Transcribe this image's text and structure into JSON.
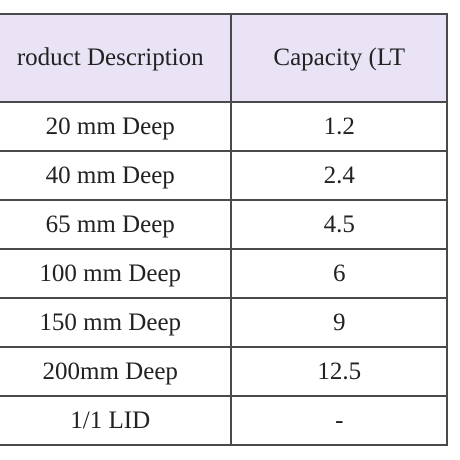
{
  "table": {
    "headers": [
      "roduct Description",
      "Capacity (LT"
    ],
    "rows": [
      {
        "description": "20 mm Deep",
        "capacity": "1.2"
      },
      {
        "description": "40 mm Deep",
        "capacity": "2.4"
      },
      {
        "description": "65 mm Deep",
        "capacity": "4.5"
      },
      {
        "description": "100 mm Deep",
        "capacity": "6"
      },
      {
        "description": "150 mm Deep",
        "capacity": "9"
      },
      {
        "description": "200mm Deep",
        "capacity": "12.5"
      },
      {
        "description": "1/1 LID",
        "capacity": "-"
      }
    ]
  },
  "colors": {
    "header_background": "#e9e3f5",
    "border": "#4a4a4a",
    "text": "#222222"
  }
}
